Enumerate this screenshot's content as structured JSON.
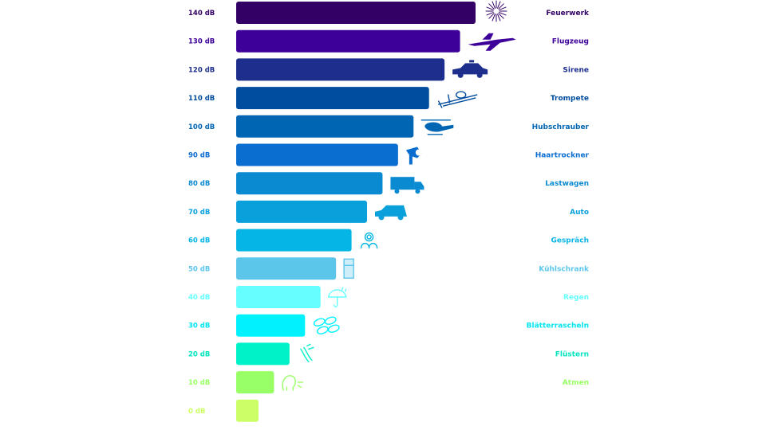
{
  "chart_data": {
    "type": "bar",
    "orientation": "horizontal",
    "unit": "dB",
    "categories": [
      "Feuerwerk",
      "Flugzeug",
      "Sirene",
      "Trompete",
      "Hubschrauber",
      "Haartrockner",
      "Lastwagen",
      "Auto",
      "Gespräch",
      "Kühlschrank",
      "Regen",
      "Blätterrascheln",
      "Flüstern",
      "Atmen",
      ""
    ],
    "values": [
      140,
      130,
      120,
      110,
      100,
      90,
      80,
      70,
      60,
      50,
      40,
      30,
      20,
      10,
      0
    ],
    "tick_labels": [
      "140 dB",
      "130 dB",
      "120 dB",
      "110 dB",
      "100 dB",
      "90 dB",
      "80 dB",
      "70 dB",
      "60 dB",
      "50 dB",
      "40 dB",
      "30 dB",
      "20 dB",
      "10 dB",
      "0 dB"
    ],
    "icons": [
      "fireworks-icon",
      "jet-plane-icon",
      "police-car-icon",
      "trombone-icon",
      "helicopter-icon",
      "hair-dryer-icon",
      "truck-icon",
      "car-icon",
      "conversation-icon",
      "fridge-icon",
      "umbrella-rain-icon",
      "leaves-icon",
      "whisper-icon",
      "breathing-icon",
      ""
    ],
    "colors": [
      "#330066",
      "#3d0099",
      "#1e2e8c",
      "#004c9e",
      "#0066b3",
      "#0a6ed1",
      "#0a8ad1",
      "#0aa0db",
      "#05b5e5",
      "#5cc6ea",
      "#66ffff",
      "#00f2ff",
      "#00f2c9",
      "#99ff66",
      "#ccff66"
    ],
    "label_colors": [
      "#330066",
      "#3d0099",
      "#1e2e8c",
      "#004c9e",
      "#0066b3",
      "#0a6ed1",
      "#0a8ad1",
      "#0aa0db",
      "#05b5e5",
      "#5cc6ea",
      "#66ffff",
      "#00e5f0",
      "#00e5c0",
      "#99ff66",
      "#ccff66"
    ],
    "xlim": [
      0,
      140
    ]
  }
}
